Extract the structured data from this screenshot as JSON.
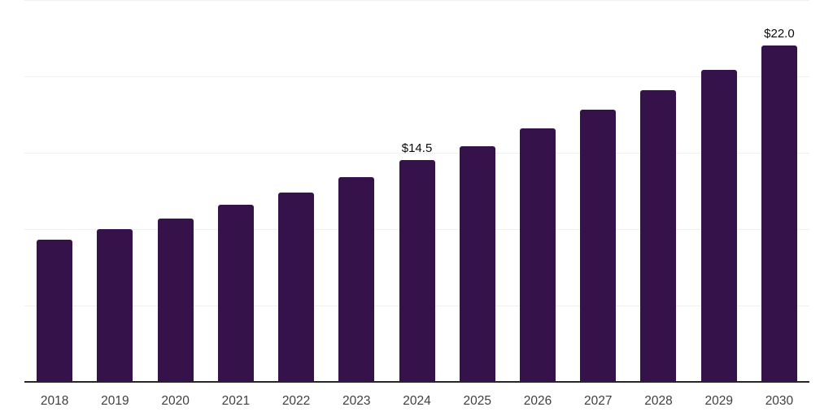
{
  "chart_data": {
    "type": "bar",
    "title": "",
    "categories": [
      "2018",
      "2019",
      "2020",
      "2021",
      "2022",
      "2023",
      "2024",
      "2025",
      "2026",
      "2027",
      "2028",
      "2029",
      "2030"
    ],
    "values": [
      9.3,
      10.0,
      10.7,
      11.6,
      12.4,
      13.4,
      14.5,
      15.4,
      16.6,
      17.8,
      19.1,
      20.4,
      22.0
    ],
    "point_labels": [
      "",
      "",
      "",
      "",
      "",
      "",
      "$14.5",
      "",
      "",
      "",
      "",
      "",
      "$22.0"
    ],
    "xlabel": "",
    "ylabel": "",
    "ylim": [
      0,
      25
    ],
    "gridline_step": 5,
    "grid": "horizontal",
    "legend_position": "none",
    "colors": {
      "bar_fill": "#36124B",
      "gridline": "#f0f0f0",
      "axis_line": "#262626",
      "tick_label": "#3f3f3f",
      "value_label": "#0a0a0a",
      "background": "#ffffff"
    }
  }
}
